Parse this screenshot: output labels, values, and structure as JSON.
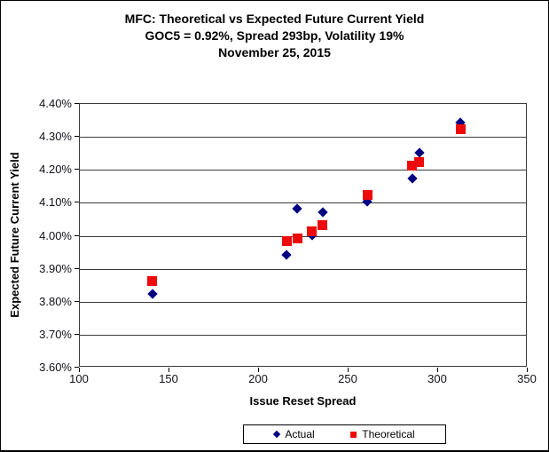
{
  "chart_data": {
    "type": "scatter",
    "title": "MFC: Theoretical vs Expected Future Current Yield",
    "subtitle": "GOC5 = 0.92%, Spread 293bp, Volatility 19%",
    "date": "November 25, 2015",
    "xlabel": "Issue Reset Spread",
    "ylabel": "Expected Future Current Yield",
    "xlim": [
      100,
      350
    ],
    "ylim": [
      3.6,
      4.4
    ],
    "x_ticks": [
      100,
      150,
      200,
      250,
      300,
      350
    ],
    "y_ticks": [
      4.4,
      4.3,
      4.2,
      4.1,
      4.0,
      3.9,
      3.8,
      3.7,
      3.6
    ],
    "y_tick_labels": [
      "4.40%",
      "4.30%",
      "4.20%",
      "4.10%",
      "4.00%",
      "3.90%",
      "3.80%",
      "3.70%",
      "3.60%"
    ],
    "grid": "horizontal",
    "legend_position": "bottom",
    "colors": {
      "actual": "#000080",
      "theoretical": "#ee0a0a",
      "gridline": "#3a3a3a"
    },
    "series": [
      {
        "name": "Actual",
        "marker": "diamond",
        "color": "#000080",
        "points": [
          [
            141,
            3.82
          ],
          [
            216,
            3.94
          ],
          [
            222,
            4.08
          ],
          [
            230,
            4.0
          ],
          [
            236,
            4.07
          ],
          [
            261,
            4.1
          ],
          [
            286,
            4.17
          ],
          [
            290,
            4.25
          ],
          [
            313,
            4.34
          ]
        ]
      },
      {
        "name": "Theoretical",
        "marker": "square",
        "color": "#ee0a0a",
        "points": [
          [
            141,
            3.86
          ],
          [
            216,
            3.98
          ],
          [
            222,
            3.99
          ],
          [
            230,
            4.01
          ],
          [
            236,
            4.03
          ],
          [
            261,
            4.12
          ],
          [
            286,
            4.21
          ],
          [
            290,
            4.22
          ],
          [
            313,
            4.32
          ]
        ]
      }
    ]
  }
}
